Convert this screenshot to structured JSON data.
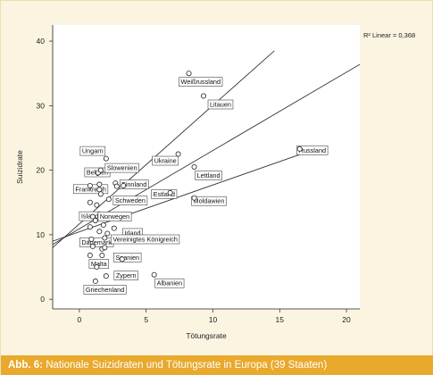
{
  "caption": {
    "prefix": "Abb. 6:",
    "text": "Nationale Suizidraten und Tötungsrate in Europa (39 Staaten)"
  },
  "colors": {
    "background": "#fbf4e1",
    "caption_bar": "#e8a92c",
    "caption_text": "#ffffff",
    "axis": "#222222",
    "lines": "#333333"
  },
  "chart_data": {
    "type": "scatter",
    "xlabel": "Tötungsrate",
    "ylabel": "Suizidrate",
    "xlim": [
      -2,
      21
    ],
    "ylim": [
      -1.5,
      42.5
    ],
    "xticks": [
      0,
      5,
      10,
      15,
      20
    ],
    "yticks": [
      0,
      10,
      20,
      30,
      40
    ],
    "grid": false,
    "annotation": "R² Linear = 0,368",
    "points": [
      {
        "x": 8.2,
        "y": 35.0,
        "label": "Weißrussland"
      },
      {
        "x": 9.3,
        "y": 31.5,
        "label": "Litauen"
      },
      {
        "x": 7.4,
        "y": 22.5,
        "label": "Ukraine"
      },
      {
        "x": 8.6,
        "y": 20.5,
        "label": "Lettland"
      },
      {
        "x": 16.5,
        "y": 23.3,
        "label": "Russland"
      },
      {
        "x": 8.6,
        "y": 15.7,
        "label": "Moldawien"
      },
      {
        "x": 6.8,
        "y": 16.5,
        "label": "Estland"
      },
      {
        "x": 2.0,
        "y": 21.8,
        "label": "Ungarn"
      },
      {
        "x": 1.4,
        "y": 19.6,
        "label": "Belgien"
      },
      {
        "x": 1.6,
        "y": 20.0,
        "label": "Slowenien"
      },
      {
        "x": 2.7,
        "y": 18.0,
        "label": "Finnland"
      },
      {
        "x": 1.5,
        "y": 17.0,
        "label": "Frankreich"
      },
      {
        "x": 2.2,
        "y": 15.5,
        "label": "Schweden"
      },
      {
        "x": 1.0,
        "y": 12.8,
        "label": "Island"
      },
      {
        "x": 1.2,
        "y": 12.2,
        "label": "Norwegen"
      },
      {
        "x": 2.1,
        "y": 10.2,
        "label": "Irland"
      },
      {
        "x": 0.9,
        "y": 9.3,
        "label": "Dänemark"
      },
      {
        "x": 1.9,
        "y": 9.5,
        "label": "Vereinigtes Königreich"
      },
      {
        "x": 1.7,
        "y": 7.8,
        "label": "Spanien"
      },
      {
        "x": 0.8,
        "y": 6.8,
        "label": "Malta"
      },
      {
        "x": 2.0,
        "y": 3.6,
        "label": "Zypern"
      },
      {
        "x": 1.2,
        "y": 2.8,
        "label": "Griechenland"
      },
      {
        "x": 5.6,
        "y": 3.8,
        "label": "Albanien"
      },
      {
        "x": 0.8,
        "y": 17.6
      },
      {
        "x": 1.5,
        "y": 17.8
      },
      {
        "x": 1.6,
        "y": 16.3
      },
      {
        "x": 2.8,
        "y": 17.5
      },
      {
        "x": 3.3,
        "y": 17.6
      },
      {
        "x": 0.8,
        "y": 15.0
      },
      {
        "x": 1.3,
        "y": 14.6
      },
      {
        "x": 0.8,
        "y": 11.2
      },
      {
        "x": 1.8,
        "y": 11.5
      },
      {
        "x": 2.6,
        "y": 11.0
      },
      {
        "x": 1.5,
        "y": 10.5
      },
      {
        "x": 1.0,
        "y": 8.2
      },
      {
        "x": 1.9,
        "y": 8.0
      },
      {
        "x": 3.2,
        "y": 6.2
      },
      {
        "x": 1.3,
        "y": 5.0
      },
      {
        "x": 1.7,
        "y": 6.8
      }
    ],
    "fit_lines": [
      {
        "x": [
          -2,
          14.6
        ],
        "y": [
          8.0,
          38.5
        ]
      },
      {
        "x": [
          -2,
          21
        ],
        "y": [
          8.5,
          36.4
        ]
      },
      {
        "x": [
          -2,
          16.6
        ],
        "y": [
          9.0,
          22.5
        ]
      }
    ]
  }
}
